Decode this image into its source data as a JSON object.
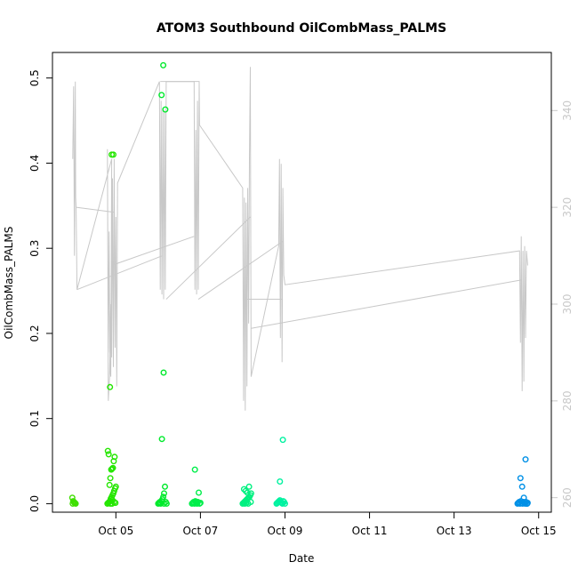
{
  "chart_data": {
    "type": "scatter",
    "title": "ATOM3 Southbound OilCombMass_PALMS",
    "xlabel": "Date",
    "ylabel": "OilCombMass_PALMS",
    "x_is_day_of_october": true,
    "xlim": [
      3.5,
      15.3
    ],
    "ylim": [
      -0.01,
      0.53
    ],
    "x_ticks": [
      {
        "value": 5,
        "label": "Oct 05"
      },
      {
        "value": 7,
        "label": "Oct 07"
      },
      {
        "value": 9,
        "label": "Oct 09"
      },
      {
        "value": 11,
        "label": "Oct 11"
      },
      {
        "value": 13,
        "label": "Oct 13"
      },
      {
        "value": 15,
        "label": "Oct 15"
      }
    ],
    "y_ticks": [
      0.0,
      0.1,
      0.2,
      0.3,
      0.4,
      0.5
    ],
    "y_tick_labels": [
      "0.0",
      "0.1",
      "0.2",
      "0.3",
      "0.4",
      "0.5"
    ],
    "secondary_axis": {
      "color": "#c8c8c8",
      "ylim": [
        257,
        352
      ],
      "ticks": [
        260,
        280,
        300,
        320,
        340
      ],
      "tick_labels": [
        "260",
        "280",
        "300",
        "320",
        "340"
      ]
    },
    "grid": false,
    "legend": "none",
    "altitude_trace": {
      "color": "#c8c8c8",
      "description": "secondary series (right axis) drawn as a thin gray line",
      "points": [
        [
          3.98,
          330
        ],
        [
          4.0,
          345
        ],
        [
          4.02,
          310
        ],
        [
          4.04,
          346
        ],
        [
          4.05,
          322
        ],
        [
          4.06,
          320
        ],
        [
          4.08,
          303
        ],
        [
          4.9,
          330
        ],
        [
          4.88,
          285
        ],
        [
          4.86,
          287
        ],
        [
          4.84,
          315
        ],
        [
          4.82,
          290
        ],
        [
          4.8,
          332
        ],
        [
          4.82,
          280
        ],
        [
          4.85,
          285
        ],
        [
          4.88,
          300
        ],
        [
          4.9,
          289
        ],
        [
          4.92,
          326
        ],
        [
          4.94,
          287
        ],
        [
          4.96,
          330
        ],
        [
          4.98,
          291
        ],
        [
          5.0,
          318
        ],
        [
          5.02,
          283
        ],
        [
          5.04,
          325
        ],
        [
          6.03,
          346
        ],
        [
          6.05,
          303
        ],
        [
          6.07,
          342
        ],
        [
          6.09,
          302
        ],
        [
          6.11,
          340
        ],
        [
          6.13,
          301
        ],
        [
          6.15,
          340
        ],
        [
          6.17,
          303
        ],
        [
          6.19,
          346
        ],
        [
          6.85,
          346
        ],
        [
          6.87,
          303
        ],
        [
          6.89,
          336
        ],
        [
          6.91,
          302
        ],
        [
          6.93,
          342
        ],
        [
          6.95,
          303
        ],
        [
          6.97,
          346
        ],
        [
          6.98,
          337
        ],
        [
          8.0,
          324
        ],
        [
          8.02,
          280
        ],
        [
          8.04,
          322
        ],
        [
          8.06,
          278
        ],
        [
          8.08,
          321
        ],
        [
          8.1,
          283
        ],
        [
          8.12,
          324
        ],
        [
          8.14,
          296
        ],
        [
          8.16,
          330
        ],
        [
          8.18,
          349
        ],
        [
          8.2,
          285
        ],
        [
          8.85,
          312
        ],
        [
          8.87,
          330
        ],
        [
          8.89,
          293
        ],
        [
          8.91,
          329
        ],
        [
          8.93,
          288
        ],
        [
          8.95,
          324
        ],
        [
          8.97,
          306
        ],
        [
          9.0,
          304
        ],
        [
          14.55,
          311
        ],
        [
          14.57,
          292
        ],
        [
          14.59,
          314
        ],
        [
          14.61,
          282
        ],
        [
          14.63,
          311
        ],
        [
          14.65,
          284
        ],
        [
          14.67,
          312
        ],
        [
          14.69,
          293
        ],
        [
          14.71,
          311
        ],
        [
          14.74,
          308
        ]
      ],
      "connectors": [
        [
          [
            4.06,
            320
          ],
          [
            4.95,
            319
          ]
        ],
        [
          [
            4.08,
            303
          ],
          [
            6.1,
            310
          ]
        ],
        [
          [
            4.9,
            308
          ],
          [
            6.85,
            314
          ]
        ],
        [
          [
            6.05,
            346
          ],
          [
            6.98,
            346
          ]
        ],
        [
          [
            6.19,
            301
          ],
          [
            8.18,
            318
          ]
        ],
        [
          [
            6.95,
            301
          ],
          [
            8.95,
            313
          ]
        ],
        [
          [
            8.1,
            301
          ],
          [
            8.95,
            301
          ]
        ],
        [
          [
            8.2,
            295
          ],
          [
            14.6,
            305
          ]
        ]
      ]
    },
    "series": [
      {
        "color": "#3fdf00",
        "groups": [
          {
            "x": [
              3.97,
              3.99,
              4.01,
              4.03,
              4.05,
              3.98,
              4.02
            ],
            "y": [
              0.007,
              0.003,
              0.002,
              0.001,
              0.0,
              0.0,
              0.001
            ]
          }
        ]
      },
      {
        "color": "#24e600",
        "groups": [
          {
            "x": [
              4.8,
              4.82,
              4.84,
              4.86,
              4.88,
              4.9,
              4.92,
              4.94,
              4.96,
              4.98,
              5.0,
              4.85,
              4.87,
              4.89,
              4.91,
              4.93,
              4.95,
              4.97,
              4.83,
              4.81,
              4.86,
              4.9,
              4.94,
              4.88,
              4.92,
              4.96,
              4.99,
              4.87,
              4.91
            ],
            "y": [
              0.0,
              0.001,
              0.002,
              0.003,
              0.005,
              0.008,
              0.01,
              0.012,
              0.015,
              0.018,
              0.02,
              0.022,
              0.03,
              0.04,
              0.041,
              0.042,
              0.05,
              0.055,
              0.058,
              0.062,
              0.137,
              0.41,
              0.41,
              0.006,
              0.004,
              0.002,
              0.001,
              0.0,
              0.0
            ]
          }
        ]
      },
      {
        "color": "#00ea2c",
        "groups": [
          {
            "x": [
              6.0,
              6.02,
              6.04,
              6.06,
              6.08,
              6.1,
              6.12,
              6.14,
              6.16,
              6.18,
              6.2,
              6.05,
              6.09,
              6.13,
              6.17,
              6.08,
              6.12,
              6.14
            ],
            "y": [
              0.0,
              0.001,
              0.002,
              0.0,
              0.003,
              0.005,
              0.008,
              0.012,
              0.02,
              0.002,
              0.0,
              0.001,
              0.076,
              0.154,
              0.463,
              0.48,
              0.515,
              0.0
            ]
          }
        ]
      },
      {
        "color": "#00ee4a",
        "groups": [
          {
            "x": [
              6.8,
              6.82,
              6.84,
              6.86,
              6.88,
              6.9,
              6.92,
              6.94,
              6.96,
              6.98,
              7.0,
              6.87,
              6.91
            ],
            "y": [
              0.0,
              0.001,
              0.002,
              0.0,
              0.003,
              0.001,
              0.0,
              0.002,
              0.013,
              0.0,
              0.001,
              0.04,
              0.002
            ]
          }
        ]
      },
      {
        "color": "#00f080",
        "groups": [
          {
            "x": [
              8.0,
              8.02,
              8.04,
              8.06,
              8.08,
              8.1,
              8.12,
              8.14,
              8.16,
              8.18,
              8.2,
              8.03,
              8.07,
              8.11,
              8.15,
              8.19,
              8.05,
              8.09,
              8.13
            ],
            "y": [
              0.0,
              0.001,
              0.002,
              0.003,
              0.004,
              0.005,
              0.006,
              0.007,
              0.008,
              0.01,
              0.012,
              0.017,
              0.015,
              0.013,
              0.02,
              0.002,
              0.0,
              0.001,
              0.0
            ]
          }
        ]
      },
      {
        "color": "#00f2a0",
        "groups": [
          {
            "x": [
              8.8,
              8.82,
              8.84,
              8.86,
              8.88,
              8.9,
              8.92,
              8.94,
              8.96,
              8.98,
              9.0,
              8.88,
              8.95
            ],
            "y": [
              0.0,
              0.001,
              0.002,
              0.003,
              0.004,
              0.002,
              0.001,
              0.0,
              0.003,
              0.002,
              0.0,
              0.026,
              0.075
            ]
          }
        ]
      },
      {
        "color": "#0090e6",
        "groups": [
          {
            "x": [
              14.5,
              14.52,
              14.54,
              14.56,
              14.58,
              14.6,
              14.62,
              14.64,
              14.66,
              14.68,
              14.7,
              14.72,
              14.74,
              14.57,
              14.61,
              14.65,
              14.69,
              14.73
            ],
            "y": [
              0.0,
              0.001,
              0.002,
              0.0,
              0.003,
              0.001,
              0.0,
              0.002,
              0.001,
              0.0,
              0.002,
              0.0,
              0.001,
              0.03,
              0.02,
              0.007,
              0.052,
              0.0
            ]
          }
        ]
      }
    ]
  }
}
